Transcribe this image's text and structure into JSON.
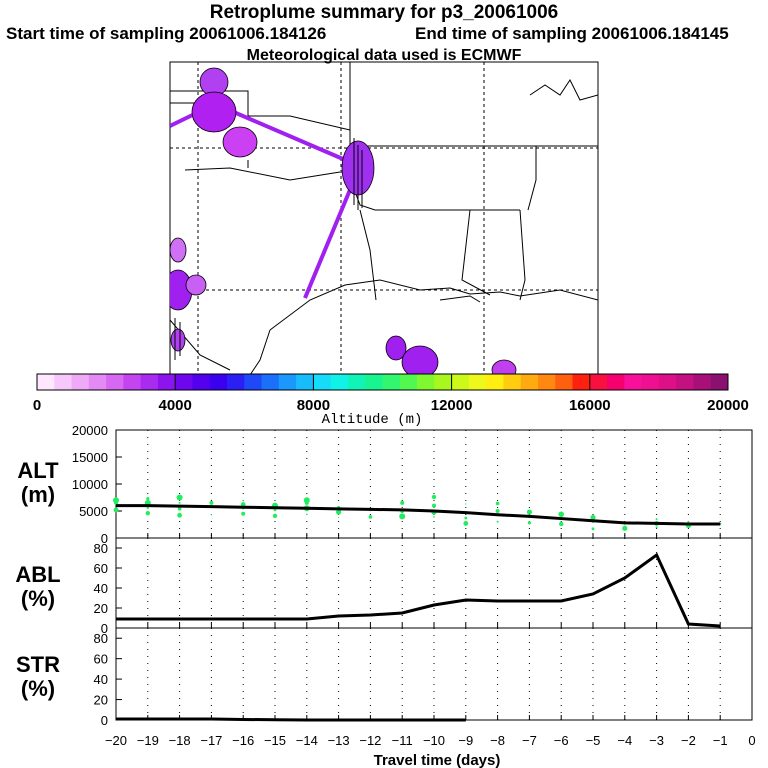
{
  "header": {
    "title": "Retroplume summary for p3_20061006",
    "start_label": "Start time of sampling 20061006.184126",
    "end_label": "End time of sampling 20061006.184145",
    "met_label": "Meteorological data used is ECMWF"
  },
  "colorbar": {
    "label": "Altitude (m)",
    "ticks": [
      "0",
      "4000",
      "8000",
      "12000",
      "16000",
      "20000"
    ],
    "colors": [
      "#ffe8ff",
      "#f7c8fb",
      "#eeaaf6",
      "#e48af4",
      "#d668f2",
      "#c445f0",
      "#a82bef",
      "#8c14ee",
      "#6e06ee",
      "#5300ee",
      "#3b00f0",
      "#2a20f5",
      "#1f48f8",
      "#1a70fa",
      "#1a98fb",
      "#18bcfb",
      "#16dcfa",
      "#10f2e8",
      "#10f4b8",
      "#18f590",
      "#30f670",
      "#50f850",
      "#80f830",
      "#a8f820",
      "#ccf81a",
      "#eef81a",
      "#ffee10",
      "#ffcc10",
      "#ffaa10",
      "#ff8810",
      "#ff6010",
      "#ff2010",
      "#f81040",
      "#f60070",
      "#f8109a",
      "#ee1090",
      "#dd1088",
      "#c41080",
      "#a81078",
      "#8c1070"
    ]
  },
  "chart_data": [
    {
      "type": "scatter",
      "panel": "ALT",
      "ylabel": "ALT\n(m)",
      "ylabel_line1": "ALT",
      "ylabel_line2": "(m)",
      "ylim": [
        0,
        20000
      ],
      "yticks": [
        0,
        5000,
        10000,
        15000,
        20000
      ],
      "ytick_labels": [
        "0",
        "5000",
        "10000",
        "15000",
        "20000"
      ],
      "x": [
        -20,
        -19,
        -18,
        -17,
        -16,
        -15,
        -14,
        -13,
        -12,
        -11,
        -10,
        -9,
        -8,
        -7,
        -6,
        -5,
        -4,
        -3,
        -2,
        -1
      ],
      "mean_altitude": [
        6000,
        6000,
        5900,
        5800,
        5700,
        5600,
        5500,
        5400,
        5300,
        5200,
        5000,
        4700,
        4300,
        4000,
        3600,
        3200,
        2800,
        2700,
        2600,
        2600
      ],
      "points": [
        [
          -20,
          5200
        ],
        [
          -20,
          6500
        ],
        [
          -20,
          7000
        ],
        [
          -19,
          4600
        ],
        [
          -19,
          5600
        ],
        [
          -19,
          6500
        ],
        [
          -19,
          7300
        ],
        [
          -18,
          4200
        ],
        [
          -18,
          5400
        ],
        [
          -18,
          6500
        ],
        [
          -18,
          7500
        ],
        [
          -17,
          4300
        ],
        [
          -17,
          5700
        ],
        [
          -17,
          6500
        ],
        [
          -17,
          7200
        ],
        [
          -16,
          4500
        ],
        [
          -16,
          5400
        ],
        [
          -16,
          6200
        ],
        [
          -16,
          6900
        ],
        [
          -15,
          4100
        ],
        [
          -15,
          5200
        ],
        [
          -15,
          6000
        ],
        [
          -14,
          4400
        ],
        [
          -14,
          5500
        ],
        [
          -14,
          6500
        ],
        [
          -14,
          7000
        ],
        [
          -13,
          3800
        ],
        [
          -13,
          4800
        ],
        [
          -13,
          5700
        ],
        [
          -13,
          6600
        ],
        [
          -12,
          3900
        ],
        [
          -12,
          5200
        ],
        [
          -12,
          6200
        ],
        [
          -11,
          4000
        ],
        [
          -11,
          5000
        ],
        [
          -11,
          6500
        ],
        [
          -11,
          7200
        ],
        [
          -10,
          3900
        ],
        [
          -10,
          4800
        ],
        [
          -10,
          6000
        ],
        [
          -10,
          7600
        ],
        [
          -9,
          2700
        ],
        [
          -9,
          3700
        ],
        [
          -9,
          4700
        ],
        [
          -9,
          6300
        ],
        [
          -8,
          3000
        ],
        [
          -8,
          4200
        ],
        [
          -8,
          5000
        ],
        [
          -8,
          6400
        ],
        [
          -7,
          2800
        ],
        [
          -7,
          3800
        ],
        [
          -7,
          4800
        ],
        [
          -6,
          2600
        ],
        [
          -6,
          3600
        ],
        [
          -6,
          4400
        ],
        [
          -5,
          1700
        ],
        [
          -5,
          2900
        ],
        [
          -5,
          3800
        ],
        [
          -5,
          5600
        ],
        [
          -4,
          1800
        ],
        [
          -4,
          2700
        ],
        [
          -4,
          3600
        ],
        [
          -3,
          2000
        ],
        [
          -3,
          2700
        ],
        [
          -3,
          3500
        ],
        [
          -2,
          2300
        ],
        [
          -2,
          3000
        ],
        [
          -1,
          2600
        ]
      ]
    },
    {
      "type": "line",
      "panel": "ABL",
      "ylabel_line1": "ABL",
      "ylabel_line2": "(%)",
      "ylim": [
        0,
        90
      ],
      "yticks": [
        0,
        20,
        40,
        60,
        80
      ],
      "ytick_labels": [
        "0",
        "20",
        "40",
        "60",
        "80"
      ],
      "x": [
        -20,
        -19,
        -18,
        -17,
        -16,
        -15,
        -14,
        -13,
        -12,
        -11,
        -10,
        -9,
        -8,
        -7,
        -6,
        -5,
        -4,
        -3,
        -2,
        -1
      ],
      "values": [
        9,
        9,
        9,
        9,
        9,
        9,
        9,
        12,
        13,
        15,
        23,
        28,
        27,
        27,
        27,
        34,
        50,
        73,
        4,
        2
      ]
    },
    {
      "type": "line",
      "panel": "STR",
      "ylabel_line1": "STR",
      "ylabel_line2": "(%)",
      "ylim": [
        0,
        90
      ],
      "yticks": [
        0,
        20,
        40,
        60,
        80
      ],
      "ytick_labels": [
        "0",
        "20",
        "40",
        "60",
        "80"
      ],
      "x": [
        -20,
        -19,
        -18,
        -17,
        -16,
        -15,
        -14,
        -13,
        -12,
        -11,
        -10,
        -9
      ],
      "values": [
        1,
        1,
        1,
        1,
        0.5,
        0.3,
        0,
        0,
        0,
        0,
        0,
        0
      ]
    }
  ],
  "xaxis": {
    "label": "Travel time (days)",
    "ticks": [
      -20,
      -19,
      -18,
      -17,
      -16,
      -15,
      -14,
      -13,
      -12,
      -11,
      -10,
      -9,
      -8,
      -7,
      -6,
      -5,
      -4,
      -3,
      -2,
      -1,
      0
    ],
    "tick_labels": [
      "−20",
      "−19",
      "−18",
      "−17",
      "−16",
      "−15",
      "−14",
      "−13",
      "−12",
      "−11",
      "−10",
      "−9",
      "−8",
      "−7",
      "−6",
      "−5",
      "−4",
      "−3",
      "−2",
      "−1",
      "0"
    ]
  },
  "map": {
    "name": "retroplume-map",
    "plume_color": "#a020f0"
  }
}
